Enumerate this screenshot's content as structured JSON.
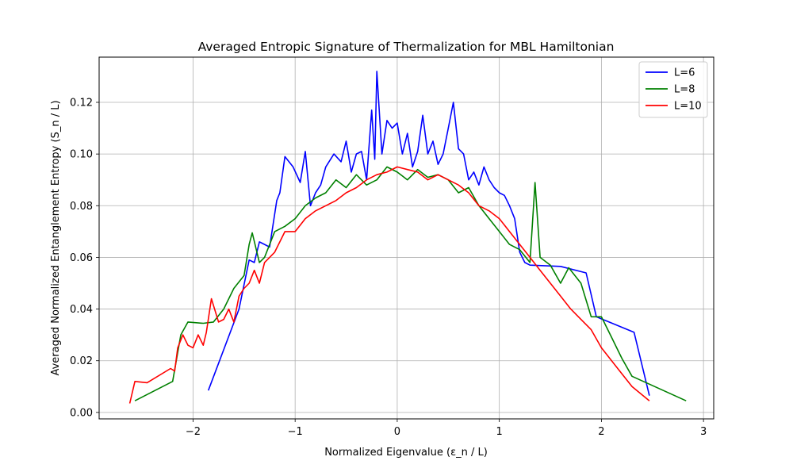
{
  "chart_data": {
    "type": "line",
    "title": "Averaged Entropic Signature of Thermalization for MBL Hamiltonian",
    "xlabel": "Normalized Eigenvalue (ε_n / L)",
    "ylabel": "Averaged Normalized Entanglement Entropy (S_n / L)",
    "xlim": [
      -2.92,
      3.1
    ],
    "ylim": [
      -0.0025,
      0.1375
    ],
    "xticks": [
      -2,
      -1,
      0,
      1,
      2,
      3
    ],
    "xtick_labels": [
      "−2",
      "−1",
      "0",
      "1",
      "2",
      "3"
    ],
    "yticks": [
      0.0,
      0.02,
      0.04,
      0.06,
      0.08,
      0.1,
      0.12
    ],
    "ytick_labels": [
      "0.00",
      "0.02",
      "0.04",
      "0.06",
      "0.08",
      "0.10",
      "0.12"
    ],
    "grid": true,
    "legend_position": "top-right",
    "series": [
      {
        "name": "L=6",
        "color": "#0000ff",
        "x": [
          -1.85,
          -1.55,
          -1.45,
          -1.4,
          -1.35,
          -1.3,
          -1.25,
          -1.18,
          -1.15,
          -1.1,
          -1.02,
          -0.95,
          -0.9,
          -0.85,
          -0.8,
          -0.75,
          -0.7,
          -0.62,
          -0.55,
          -0.5,
          -0.45,
          -0.4,
          -0.35,
          -0.3,
          -0.25,
          -0.22,
          -0.2,
          -0.15,
          -0.1,
          -0.05,
          0.0,
          0.05,
          0.1,
          0.15,
          0.2,
          0.25,
          0.3,
          0.35,
          0.4,
          0.45,
          0.5,
          0.55,
          0.6,
          0.65,
          0.7,
          0.75,
          0.8,
          0.85,
          0.9,
          0.95,
          1.0,
          1.05,
          1.1,
          1.15,
          1.2,
          1.25,
          1.3,
          1.6,
          1.85,
          1.95,
          2.32,
          2.47
        ],
        "y": [
          0.0085,
          0.04,
          0.059,
          0.058,
          0.066,
          0.065,
          0.064,
          0.082,
          0.085,
          0.099,
          0.095,
          0.089,
          0.101,
          0.08,
          0.085,
          0.088,
          0.095,
          0.1,
          0.097,
          0.105,
          0.093,
          0.1,
          0.101,
          0.09,
          0.117,
          0.098,
          0.132,
          0.1,
          0.113,
          0.11,
          0.112,
          0.1,
          0.108,
          0.095,
          0.101,
          0.115,
          0.1,
          0.105,
          0.096,
          0.1,
          0.11,
          0.12,
          0.102,
          0.1,
          0.09,
          0.093,
          0.088,
          0.095,
          0.09,
          0.087,
          0.085,
          0.084,
          0.08,
          0.075,
          0.062,
          0.058,
          0.057,
          0.0565,
          0.054,
          0.037,
          0.031,
          0.0065
        ]
      },
      {
        "name": "L=8",
        "color": "#008000",
        "x": [
          -2.57,
          -2.2,
          -2.12,
          -2.05,
          -1.9,
          -1.8,
          -1.7,
          -1.6,
          -1.5,
          -1.45,
          -1.42,
          -1.35,
          -1.3,
          -1.2,
          -1.1,
          -1.0,
          -0.9,
          -0.8,
          -0.7,
          -0.6,
          -0.5,
          -0.4,
          -0.3,
          -0.2,
          -0.1,
          0.0,
          0.1,
          0.2,
          0.3,
          0.4,
          0.5,
          0.6,
          0.7,
          0.8,
          0.9,
          1.0,
          1.1,
          1.2,
          1.3,
          1.35,
          1.4,
          1.5,
          1.6,
          1.68,
          1.8,
          1.9,
          2.0,
          2.1,
          2.2,
          2.3,
          2.83
        ],
        "y": [
          0.0045,
          0.012,
          0.03,
          0.035,
          0.0345,
          0.035,
          0.04,
          0.048,
          0.053,
          0.065,
          0.0695,
          0.058,
          0.06,
          0.07,
          0.072,
          0.075,
          0.08,
          0.083,
          0.085,
          0.09,
          0.087,
          0.092,
          0.088,
          0.09,
          0.095,
          0.093,
          0.09,
          0.094,
          0.091,
          0.092,
          0.09,
          0.085,
          0.087,
          0.08,
          0.075,
          0.07,
          0.065,
          0.063,
          0.058,
          0.089,
          0.06,
          0.057,
          0.05,
          0.056,
          0.05,
          0.037,
          0.037,
          0.029,
          0.021,
          0.014,
          0.0045
        ]
      },
      {
        "name": "L=10",
        "color": "#ff0000",
        "x": [
          -2.62,
          -2.57,
          -2.45,
          -2.22,
          -2.18,
          -2.15,
          -2.1,
          -2.05,
          -2.0,
          -1.95,
          -1.9,
          -1.87,
          -1.82,
          -1.75,
          -1.7,
          -1.65,
          -1.6,
          -1.55,
          -1.5,
          -1.45,
          -1.4,
          -1.35,
          -1.3,
          -1.25,
          -1.2,
          -1.1,
          -1.0,
          -0.9,
          -0.8,
          -0.7,
          -0.6,
          -0.5,
          -0.4,
          -0.3,
          -0.2,
          -0.1,
          0.0,
          0.1,
          0.2,
          0.3,
          0.4,
          0.5,
          0.6,
          0.7,
          0.8,
          0.9,
          1.0,
          1.1,
          1.2,
          1.3,
          1.4,
          1.5,
          1.6,
          1.7,
          1.8,
          1.9,
          2.0,
          2.1,
          2.2,
          2.3,
          2.47
        ],
        "y": [
          0.0035,
          0.012,
          0.0115,
          0.017,
          0.016,
          0.025,
          0.03,
          0.026,
          0.025,
          0.03,
          0.026,
          0.031,
          0.044,
          0.035,
          0.036,
          0.04,
          0.035,
          0.045,
          0.048,
          0.05,
          0.055,
          0.05,
          0.058,
          0.06,
          0.062,
          0.07,
          0.07,
          0.075,
          0.078,
          0.08,
          0.082,
          0.085,
          0.087,
          0.09,
          0.092,
          0.093,
          0.095,
          0.094,
          0.093,
          0.09,
          0.092,
          0.09,
          0.088,
          0.085,
          0.08,
          0.078,
          0.075,
          0.07,
          0.065,
          0.06,
          0.055,
          0.05,
          0.045,
          0.04,
          0.036,
          0.032,
          0.025,
          0.02,
          0.015,
          0.01,
          0.0045
        ]
      }
    ]
  }
}
